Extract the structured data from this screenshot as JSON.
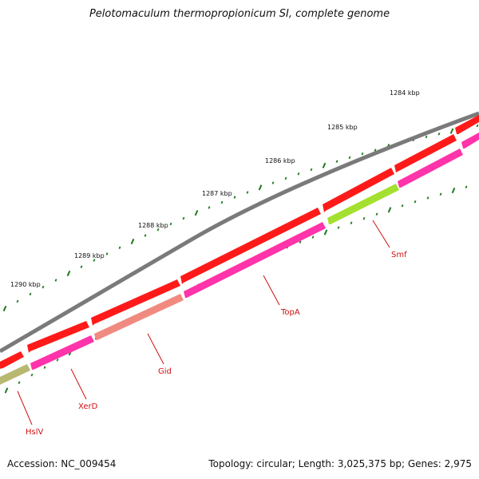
{
  "header": {
    "title": "Pelotomaculum thermopropionicum SI, complete genome"
  },
  "footer": {
    "accession": "Accession: NC_009454",
    "topology": "Topology: circular; Length: 3,025,375 bp; Genes: 2,975"
  },
  "colors": {
    "backbone": "#7a7a7a",
    "forward_gene": "#ff1a1a",
    "reverse_gene": "#ff33aa",
    "rrna_like": "#f08a80",
    "olive_gene": "#b8b870",
    "lime_gene": "#a4e030",
    "tick": "#1e7a1e",
    "label": "#cc1111"
  },
  "kbp_labels": [
    "1290 kbp",
    "1289 kbp",
    "1288 kbp",
    "1287 kbp",
    "1286 kbp",
    "1285 kbp",
    "1284 kbp"
  ],
  "gene_labels": [
    "HslV",
    "XerD",
    "Gid",
    "TopA",
    "Smf"
  ]
}
